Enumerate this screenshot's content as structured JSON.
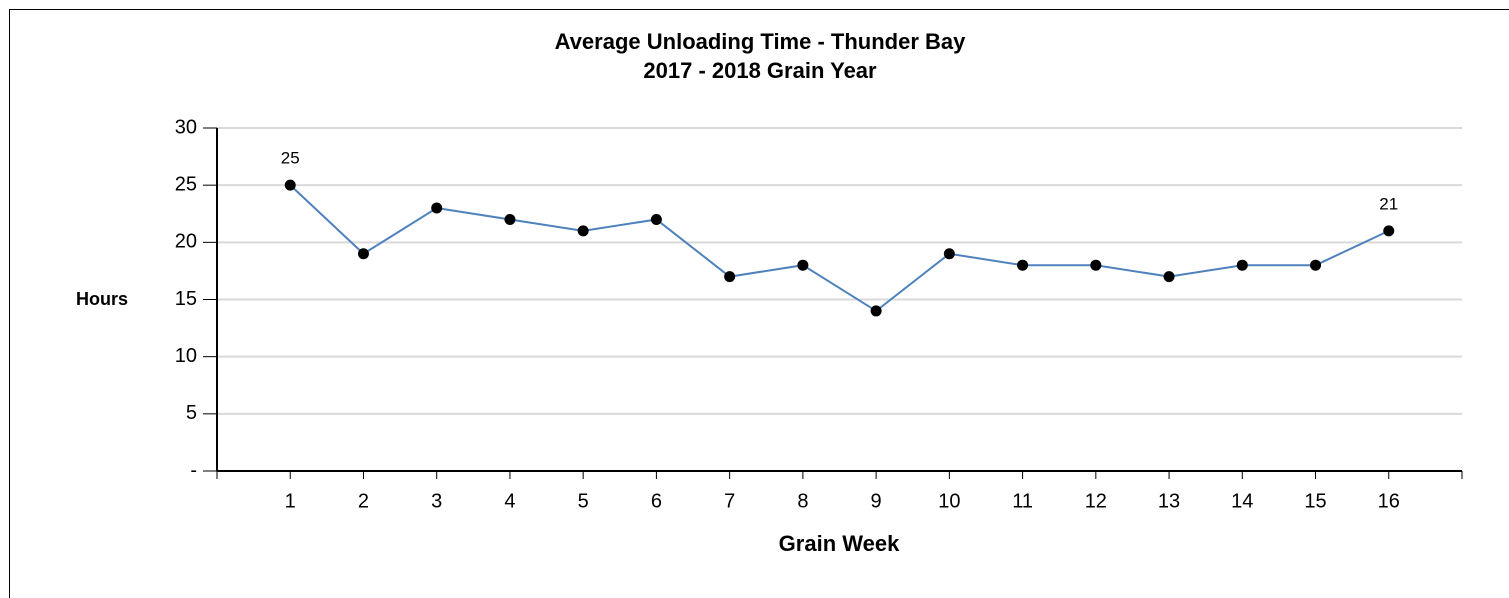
{
  "chart_data": {
    "type": "line",
    "title": "Average Unloading Time - Thunder Bay",
    "subtitle": "2017 - 2018 Grain Year",
    "x_label": "Grain Week",
    "y_label": "Hours",
    "categories": [
      "1",
      "2",
      "3",
      "4",
      "5",
      "6",
      "7",
      "8",
      "9",
      "10",
      "11",
      "12",
      "13",
      "14",
      "15",
      "16"
    ],
    "series": [
      {
        "name": "Hours",
        "color": "#4f81bd",
        "marker_color": "#000000",
        "values": [
          25,
          19,
          23,
          22,
          21,
          22,
          17,
          18,
          14,
          19,
          18,
          18,
          17,
          18,
          18,
          21
        ],
        "value_labels": [
          "25",
          null,
          null,
          null,
          null,
          null,
          null,
          null,
          null,
          null,
          null,
          null,
          null,
          null,
          null,
          "21"
        ]
      }
    ],
    "ylim": [
      0,
      30
    ],
    "yticks": [
      {
        "value": 0,
        "label": "-"
      },
      5,
      10,
      15,
      20,
      25,
      30
    ],
    "grid": true,
    "legend": false
  }
}
